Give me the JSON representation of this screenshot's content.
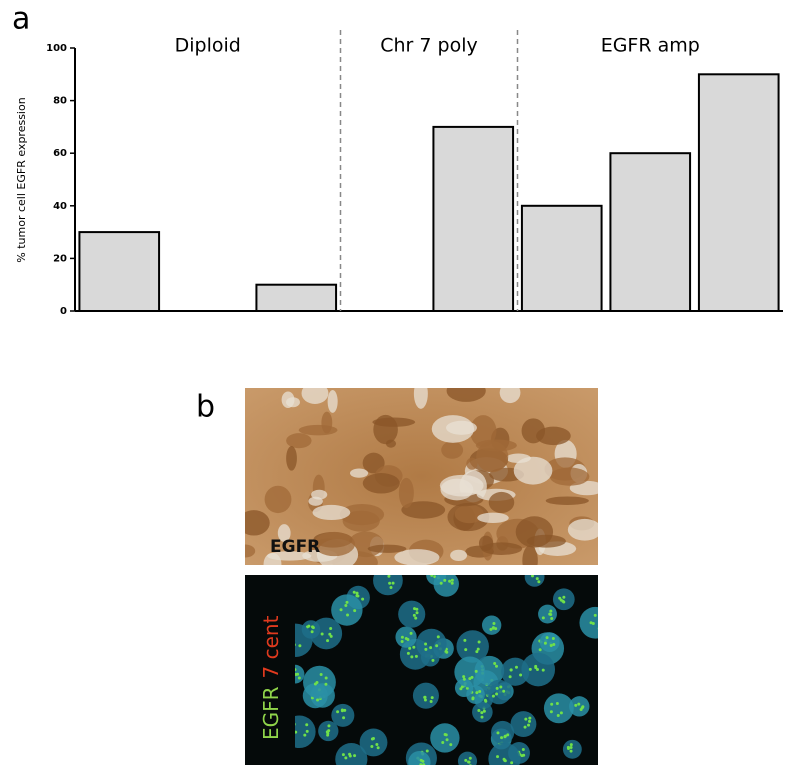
{
  "chart_data": {
    "type": "bar",
    "panel_label": "a",
    "ylabel": "% tumor cell EGFR expression",
    "categories": [
      null,
      null,
      null,
      null,
      null,
      null,
      null,
      null
    ],
    "values": [
      30,
      0,
      10,
      0,
      70,
      40,
      60,
      90
    ],
    "color": "#d9d9d9",
    "groups": [
      {
        "name": "Diploid",
        "size": 3
      },
      {
        "name": "Chr 7 poly",
        "size": 2
      },
      {
        "name": "EGFR amp",
        "size": 3
      }
    ],
    "ylim": [
      0,
      100
    ],
    "yticks": [
      0,
      20,
      40,
      60,
      80,
      100
    ],
    "grid": false
  },
  "panel_b": {
    "label": "b",
    "ihc_label": "EGFR",
    "fish_labels": [
      "EGFR",
      "7 cent"
    ]
  }
}
